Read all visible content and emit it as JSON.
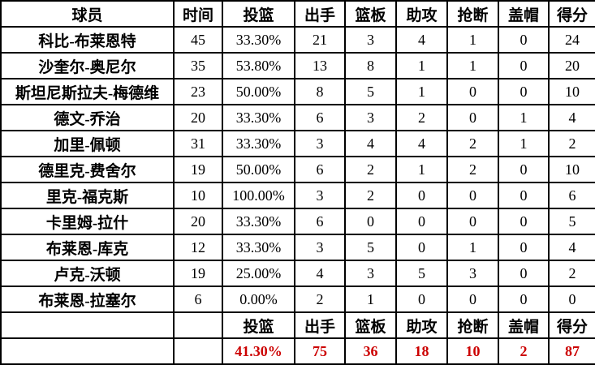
{
  "colors": {
    "border": "#000000",
    "background": "#ffffff",
    "text": "#000000",
    "totals_red": "#cc0000"
  },
  "table": {
    "headers": [
      "球员",
      "时间",
      "投篮",
      "出手",
      "篮板",
      "助攻",
      "抢断",
      "盖帽",
      "得分"
    ],
    "rows": [
      [
        "科比-布莱恩特",
        "45",
        "33.30%",
        "21",
        "3",
        "4",
        "1",
        "0",
        "24"
      ],
      [
        "沙奎尔-奥尼尔",
        "35",
        "53.80%",
        "13",
        "8",
        "1",
        "1",
        "0",
        "20"
      ],
      [
        "斯坦尼斯拉夫-梅德维",
        "23",
        "50.00%",
        "8",
        "5",
        "1",
        "0",
        "0",
        "10"
      ],
      [
        "德文-乔治",
        "20",
        "33.30%",
        "6",
        "3",
        "2",
        "0",
        "1",
        "4"
      ],
      [
        "加里-佩顿",
        "31",
        "33.30%",
        "3",
        "4",
        "4",
        "2",
        "1",
        "2"
      ],
      [
        "德里克-费舍尔",
        "19",
        "50.00%",
        "6",
        "2",
        "1",
        "2",
        "0",
        "10"
      ],
      [
        "里克-福克斯",
        "10",
        "100.00%",
        "3",
        "2",
        "0",
        "0",
        "0",
        "6"
      ],
      [
        "卡里姆-拉什",
        "20",
        "33.30%",
        "6",
        "0",
        "0",
        "0",
        "0",
        "5"
      ],
      [
        "布莱恩-库克",
        "12",
        "33.30%",
        "3",
        "5",
        "0",
        "1",
        "0",
        "4"
      ],
      [
        "卢克-沃顿",
        "19",
        "25.00%",
        "4",
        "3",
        "5",
        "3",
        "0",
        "2"
      ],
      [
        "布莱恩-拉塞尔",
        "6",
        "0.00%",
        "2",
        "1",
        "0",
        "0",
        "0",
        "0"
      ]
    ],
    "footer_labels": [
      "",
      "",
      "投篮",
      "出手",
      "篮板",
      "助攻",
      "抢断",
      "盖帽",
      "得分"
    ],
    "totals": [
      "",
      "",
      "41.30%",
      "75",
      "36",
      "18",
      "10",
      "2",
      "87"
    ]
  },
  "chart_data": {
    "type": "table",
    "title": "",
    "columns": [
      "球员",
      "时间",
      "投篮",
      "出手",
      "篮板",
      "助攻",
      "抢断",
      "盖帽",
      "得分"
    ],
    "rows": [
      {
        "球员": "科比-布莱恩特",
        "时间": 45,
        "投篮": "33.30%",
        "出手": 21,
        "篮板": 3,
        "助攻": 4,
        "抢断": 1,
        "盖帽": 0,
        "得分": 24
      },
      {
        "球员": "沙奎尔-奥尼尔",
        "时间": 35,
        "投篮": "53.80%",
        "出手": 13,
        "篮板": 8,
        "助攻": 1,
        "抢断": 1,
        "盖帽": 0,
        "得分": 20
      },
      {
        "球员": "斯坦尼斯拉夫-梅德维",
        "时间": 23,
        "投篮": "50.00%",
        "出手": 8,
        "篮板": 5,
        "助攻": 1,
        "抢断": 0,
        "盖帽": 0,
        "得分": 10
      },
      {
        "球员": "德文-乔治",
        "时间": 20,
        "投篮": "33.30%",
        "出手": 6,
        "篮板": 3,
        "助攻": 2,
        "抢断": 0,
        "盖帽": 1,
        "得分": 4
      },
      {
        "球员": "加里-佩顿",
        "时间": 31,
        "投篮": "33.30%",
        "出手": 3,
        "篮板": 4,
        "助攻": 4,
        "抢断": 2,
        "盖帽": 1,
        "得分": 2
      },
      {
        "球员": "德里克-费舍尔",
        "时间": 19,
        "投篮": "50.00%",
        "出手": 6,
        "篮板": 2,
        "助攻": 1,
        "抢断": 2,
        "盖帽": 0,
        "得分": 10
      },
      {
        "球员": "里克-福克斯",
        "时间": 10,
        "投篮": "100.00%",
        "出手": 3,
        "篮板": 2,
        "助攻": 0,
        "抢断": 0,
        "盖帽": 0,
        "得分": 6
      },
      {
        "球员": "卡里姆-拉什",
        "时间": 20,
        "投篮": "33.30%",
        "出手": 6,
        "篮板": 0,
        "助攻": 0,
        "抢断": 0,
        "盖帽": 0,
        "得分": 5
      },
      {
        "球员": "布莱恩-库克",
        "时间": 12,
        "投篮": "33.30%",
        "出手": 3,
        "篮板": 5,
        "助攻": 0,
        "抢断": 1,
        "盖帽": 0,
        "得分": 4
      },
      {
        "球员": "卢克-沃顿",
        "时间": 19,
        "投篮": "25.00%",
        "出手": 4,
        "篮板": 3,
        "助攻": 5,
        "抢断": 3,
        "盖帽": 0,
        "得分": 2
      },
      {
        "球员": "布莱恩-拉塞尔",
        "时间": 6,
        "投篮": "0.00%",
        "出手": 2,
        "篮板": 1,
        "助攻": 0,
        "抢断": 0,
        "盖帽": 0,
        "得分": 0
      }
    ],
    "totals_row": {
      "投篮": "41.30%",
      "出手": 75,
      "篮板": 36,
      "助攻": 18,
      "抢断": 10,
      "盖帽": 2,
      "得分": 87
    }
  }
}
